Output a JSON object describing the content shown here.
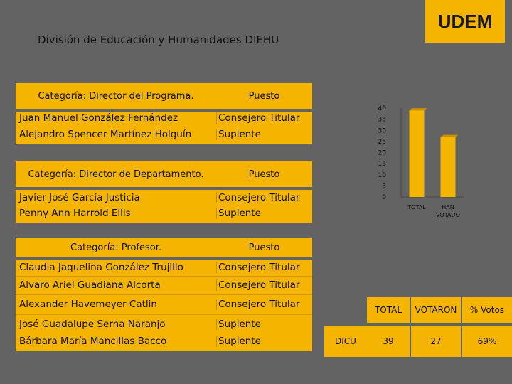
{
  "logo": "UDEM",
  "title": "División de Educación y Humanidades DIEHU",
  "sections": [
    {
      "header": "Categoría: Director del Programa.",
      "col2": "Puesto",
      "rows": [
        {
          "name": "Juan Manuel González Fernández",
          "role": "Consejero Titular"
        },
        {
          "name": "Alejandro Spencer Martínez Holguín",
          "role": "Suplente"
        }
      ]
    },
    {
      "header": "Categoría: Director de Departamento.",
      "col2": "Puesto",
      "rows": [
        {
          "name": "Javier José García Justicia",
          "role": "Consejero Titular"
        },
        {
          "name": "Penny Ann Harrold Ellis",
          "role": "Suplente"
        }
      ]
    },
    {
      "header": "Categoría: Profesor.",
      "col2": "Puesto",
      "rows": [
        {
          "name": "Claudia Jaquelina González Trujillo",
          "role": "Consejero Titular"
        },
        {
          "name": "Alvaro Ariel Guadiana Alcorta",
          "role": "Consejero Titular"
        },
        {
          "name": "Alexander Havemeyer Catlin",
          "role": "Consejero Titular"
        },
        {
          "name": "José Guadalupe Serna Naranjo",
          "role": "Suplente"
        },
        {
          "name": "Bárbara María Mancillas Bacco",
          "role": "Suplente"
        }
      ]
    }
  ],
  "chart_data": {
    "type": "bar",
    "categories": [
      "TOTAL",
      "HAN VOTADO"
    ],
    "values": [
      39,
      27
    ],
    "ylim": [
      0,
      40
    ],
    "yticks": [
      "0",
      "5",
      "10",
      "15",
      "20",
      "25",
      "30",
      "35",
      "40"
    ],
    "category_labels": [
      [
        "TOTAL"
      ],
      [
        "HAN",
        "VOTADO"
      ]
    ],
    "bar_color": "#f5b400"
  },
  "stats": {
    "headers": [
      "TOTAL",
      "VOTARON",
      "% Votos"
    ],
    "label": "DICU",
    "values": [
      "39",
      "27",
      "69%"
    ]
  }
}
